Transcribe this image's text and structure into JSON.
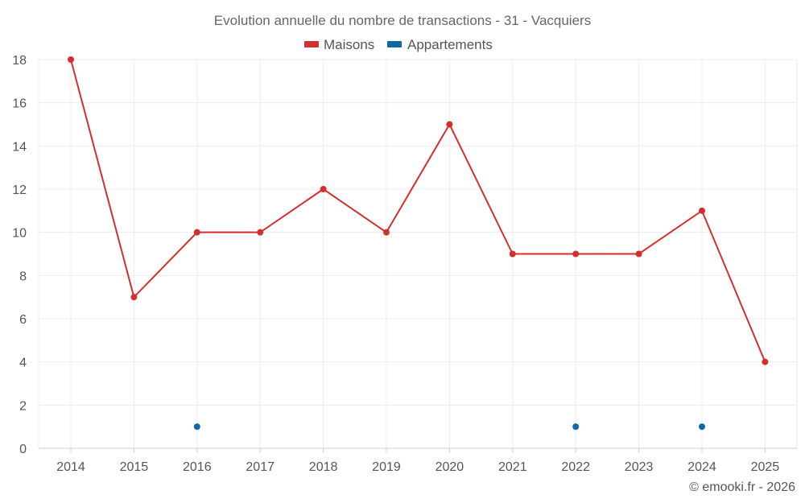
{
  "chart_data": {
    "type": "line",
    "title": "Evolution annuelle du nombre de transactions - 31 - Vacquiers",
    "categories": [
      "2014",
      "2015",
      "2016",
      "2017",
      "2018",
      "2019",
      "2020",
      "2021",
      "2022",
      "2023",
      "2024",
      "2025"
    ],
    "ylim": [
      0,
      18
    ],
    "yticks": [
      0,
      2,
      4,
      6,
      8,
      10,
      12,
      14,
      16,
      18
    ],
    "grid": true,
    "legend_position": "top-center",
    "series": [
      {
        "name": "Maisons",
        "color": "#d32f2f",
        "values": [
          18,
          7,
          10,
          10,
          12,
          10,
          15,
          9,
          9,
          9,
          11,
          4
        ]
      },
      {
        "name": "Appartements",
        "color": "#0a6aa1",
        "values": [
          null,
          null,
          1,
          null,
          null,
          null,
          null,
          null,
          1,
          null,
          1,
          null
        ]
      }
    ],
    "credit": "© emooki.fr - 2026"
  }
}
